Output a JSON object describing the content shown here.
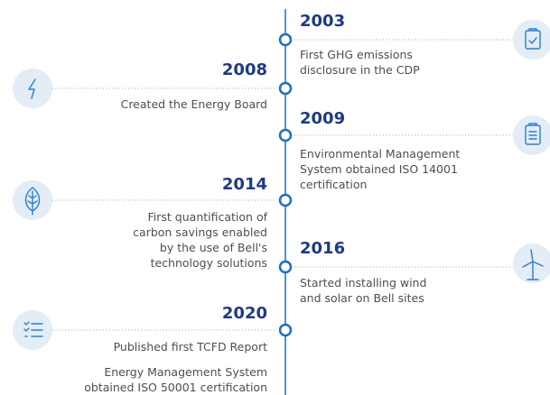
{
  "events": [
    {
      "year": "2003",
      "paragraphs": [
        [
          "First GHG emissions",
          "disclosure in the CDP"
        ]
      ]
    },
    {
      "year": "2008",
      "paragraphs": [
        [
          "Created the Energy Board"
        ]
      ]
    },
    {
      "year": "2009",
      "paragraphs": [
        [
          "Environmental Management",
          "System obtained ISO 14001",
          "certification"
        ]
      ]
    },
    {
      "year": "2014",
      "paragraphs": [
        [
          "First quantification of",
          "carbon savings enabled",
          "by the use of Bell's",
          "technology solutions"
        ]
      ]
    },
    {
      "year": "2016",
      "paragraphs": [
        [
          "Started installing wind",
          "and solar on Bell sites"
        ]
      ]
    },
    {
      "year": "2020",
      "paragraphs": [
        [
          "Published first TCFD Report"
        ],
        [
          "Energy Management System",
          "obtained ISO 50001 certification"
        ]
      ]
    }
  ]
}
